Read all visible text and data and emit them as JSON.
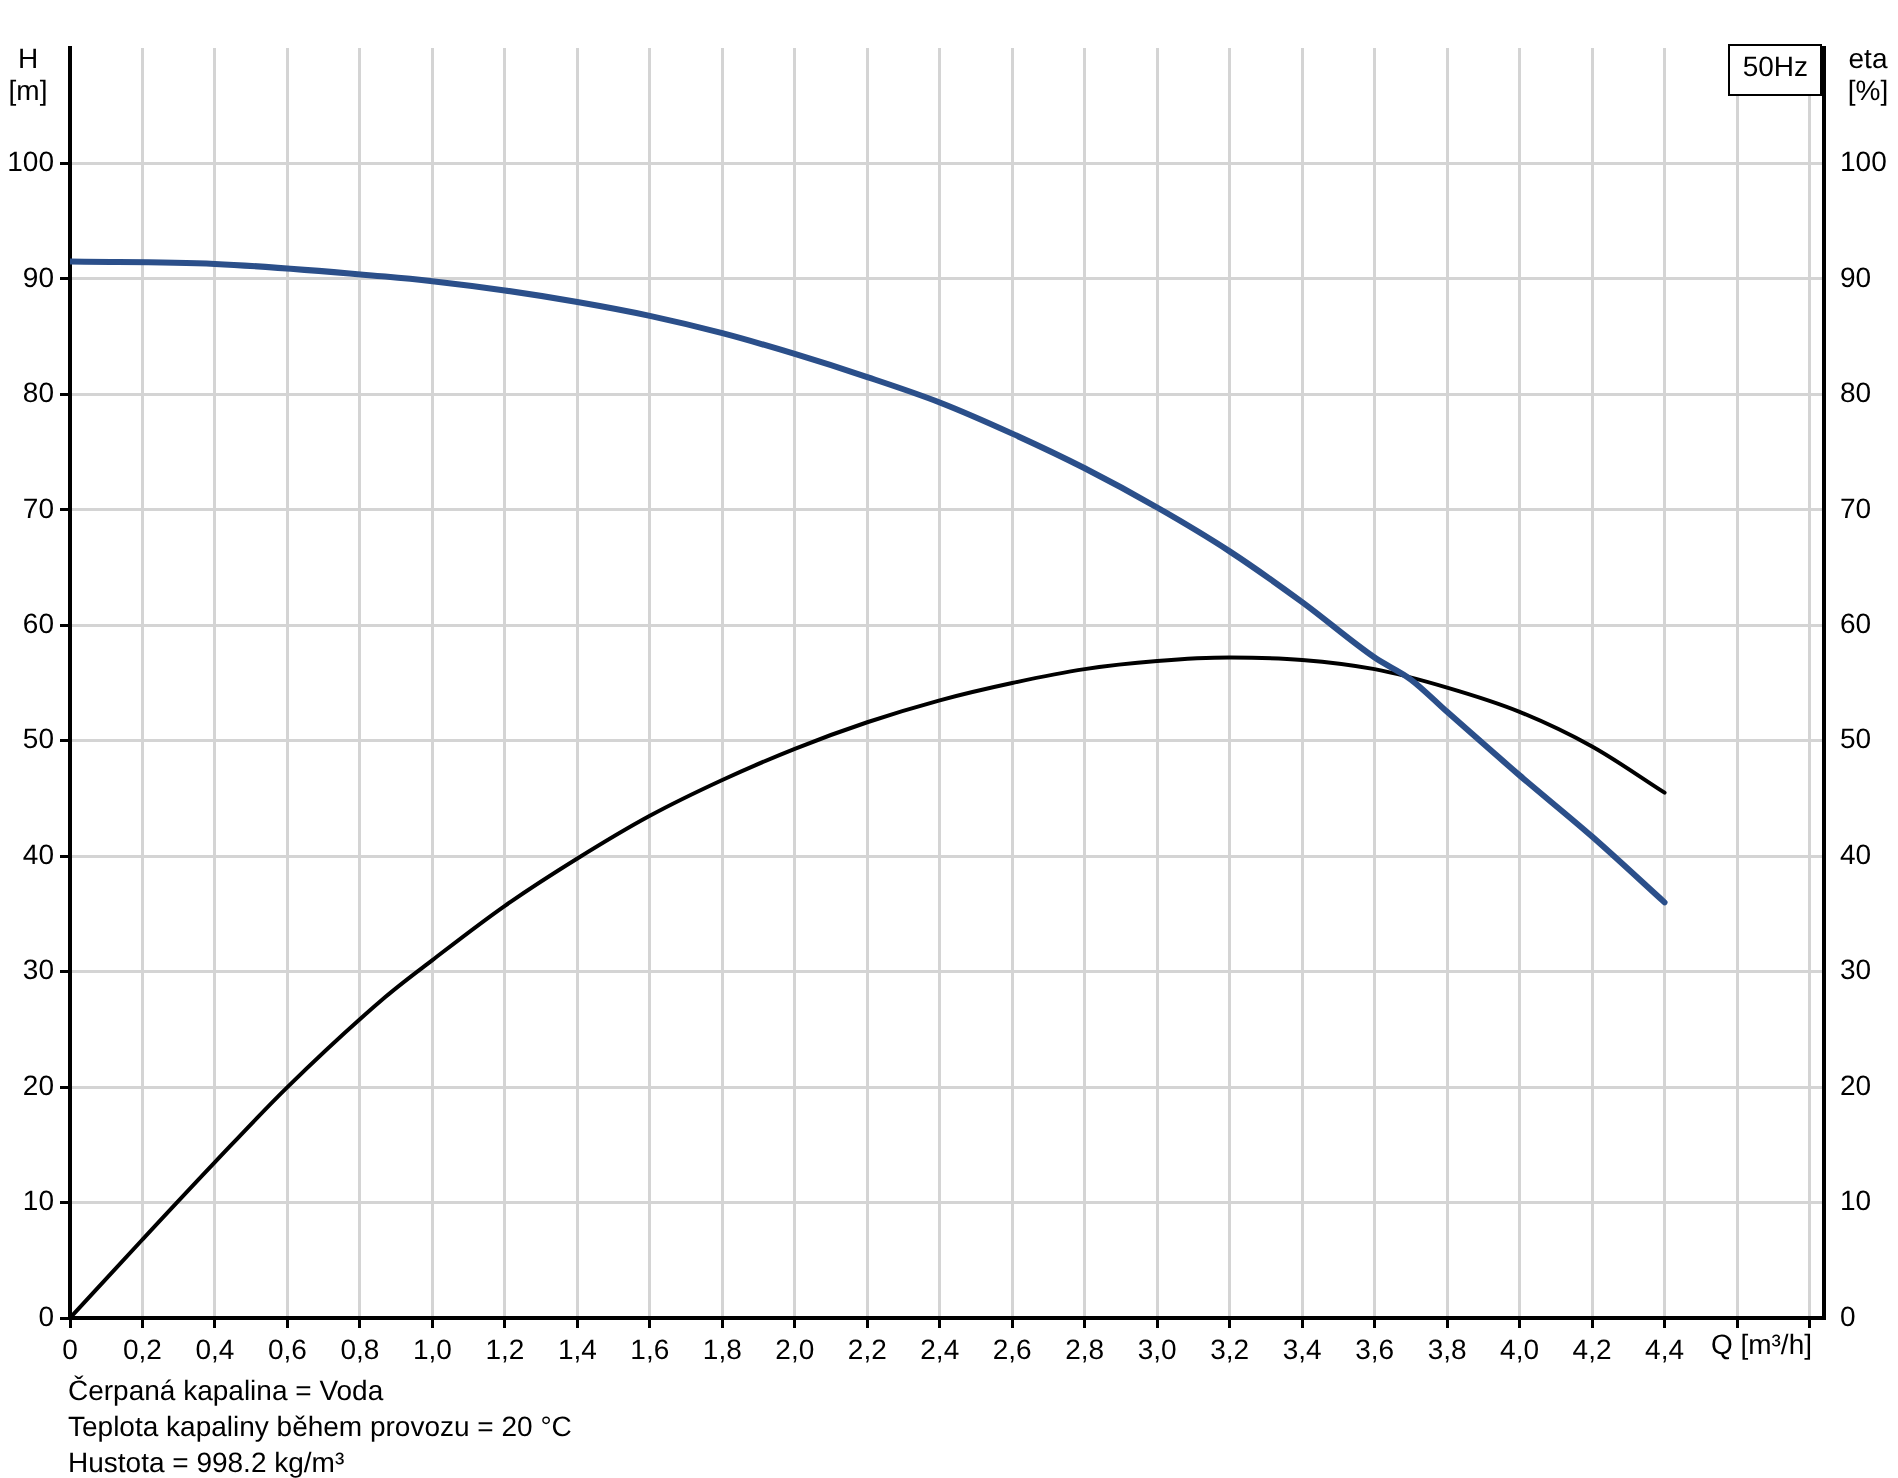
{
  "chart_data": {
    "type": "line",
    "title": "50Hz",
    "xlabel": "Q [m³/h]",
    "ylabel": "H\n[m]",
    "y2label": "eta\n[%]",
    "xlim": [
      0,
      4.84
    ],
    "xticks": [
      0,
      {
        "value": 0.2,
        "label": "0,2"
      },
      {
        "value": 0.4,
        "label": "0,4"
      },
      {
        "value": 0.6,
        "label": "0,6"
      },
      {
        "value": 0.8,
        "label": "0,8"
      },
      {
        "value": 1,
        "label": "1,0"
      },
      {
        "value": 1.2,
        "label": "1,2"
      },
      {
        "value": 1.4,
        "label": "1,4"
      },
      {
        "value": 1.6,
        "label": "1,6"
      },
      {
        "value": 1.8,
        "label": "1,8"
      },
      {
        "value": 2,
        "label": "2,0"
      },
      {
        "value": 2.2,
        "label": "2,2"
      },
      {
        "value": 2.4,
        "label": "2,4"
      },
      {
        "value": 2.6,
        "label": "2,6"
      },
      {
        "value": 2.8,
        "label": "2,8"
      },
      {
        "value": 3,
        "label": "3,0"
      },
      {
        "value": 3.2,
        "label": "3,2"
      },
      {
        "value": 3.4,
        "label": "3,4"
      },
      {
        "value": 3.6,
        "label": "3,6"
      },
      {
        "value": 3.8,
        "label": "3,8"
      },
      {
        "value": 4,
        "label": "4,0"
      },
      {
        "value": 4.2,
        "label": "4,2"
      },
      {
        "value": 4.4,
        "label": "4,4"
      },
      {
        "value": 4.6,
        "label": null
      },
      {
        "value": 4.8,
        "label": null
      }
    ],
    "ylim": [
      0,
      110
    ],
    "yticks": [
      0,
      10,
      20,
      30,
      40,
      50,
      60,
      70,
      80,
      90,
      100
    ],
    "y2lim": [
      0,
      110
    ],
    "y2ticks": [
      0,
      10,
      20,
      30,
      40,
      50,
      60,
      70,
      80,
      90,
      100
    ],
    "grid": true,
    "legend": false,
    "marker": "none",
    "line_style": "solid",
    "series": [
      {
        "color": "#2b4f8a",
        "x": [
          0,
          0.4,
          0.87,
          1.0,
          1.2,
          1.4,
          1.6,
          1.8,
          2.0,
          2.2,
          2.4,
          2.6,
          2.8,
          3.0,
          3.2,
          3.4,
          3.6,
          3.7,
          3.8,
          4.0,
          4.2,
          4.4
        ],
        "values": [
          91.5,
          91.3,
          90.2,
          89.8,
          89,
          88,
          86.8,
          85.3,
          83.5,
          81.5,
          79.3,
          76.6,
          73.6,
          70.2,
          66.4,
          62,
          57.2,
          55.3,
          52.5,
          47,
          41.7,
          36
        ]
      },
      {
        "color": "#000000",
        "axis": "y2",
        "x": [
          0,
          0.2,
          0.4,
          0.6,
          0.87,
          1.0,
          1.2,
          1.4,
          1.6,
          1.8,
          2.0,
          2.2,
          2.4,
          2.6,
          2.8,
          3.0,
          3.2,
          3.4,
          3.6,
          3.8,
          4.0,
          4.2,
          4.4
        ],
        "values": [
          0,
          6.8,
          13.5,
          20,
          27.8,
          31,
          35.7,
          39.8,
          43.5,
          46.6,
          49.3,
          51.6,
          53.5,
          55,
          56.2,
          56.9,
          57.2,
          57,
          56.2,
          54.6,
          52.5,
          49.5,
          45.5
        ]
      }
    ],
    "annotations": [
      "Čerpaná kapalina = Voda",
      "Teplota kapaliny během provozu = 20 °C",
      "Hustota = 998.2 kg/m³"
    ]
  }
}
